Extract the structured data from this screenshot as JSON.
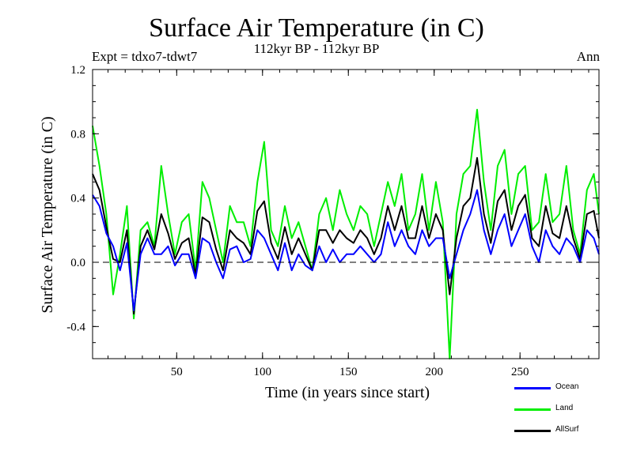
{
  "chart_data": {
    "type": "line",
    "title": "Surface Air Temperature (in C)",
    "subtitle": "112kyr BP - 112kyr BP",
    "expt_label": "Expt = tdxo7-tdwt7",
    "season_label": "Ann",
    "xlabel": "Time (in years since start)",
    "ylabel": "Surface Air Temperature (in C)",
    "xlim": [
      1,
      296
    ],
    "ylim": [
      -0.6,
      1.2
    ],
    "x_ticks": [
      50,
      100,
      150,
      200,
      250
    ],
    "y_ticks": [
      -0.4,
      0.0,
      0.4,
      0.8,
      1.2
    ],
    "y_tick_labels": [
      "-0.4",
      "0.0",
      "0.4",
      "0.8",
      "1.2"
    ],
    "zero_line": "dashed",
    "grid": false,
    "legend_position": "bottom-right, below plot",
    "series": [
      {
        "name": "Ocean",
        "color": "#0000ff",
        "x": [
          1,
          5,
          9,
          13,
          17,
          21,
          25,
          29,
          33,
          37,
          41,
          45,
          49,
          53,
          57,
          61,
          65,
          69,
          73,
          77,
          81,
          85,
          89,
          93,
          97,
          101,
          105,
          109,
          113,
          117,
          121,
          125,
          129,
          133,
          137,
          141,
          145,
          149,
          153,
          157,
          161,
          165,
          169,
          173,
          177,
          181,
          185,
          189,
          193,
          197,
          201,
          205,
          209,
          213,
          217,
          221,
          225,
          229,
          233,
          237,
          241,
          245,
          249,
          253,
          257,
          261,
          265,
          269,
          273,
          277,
          281,
          285,
          289,
          293,
          296
        ],
        "values": [
          0.42,
          0.35,
          0.18,
          0.1,
          -0.05,
          0.12,
          -0.3,
          0.05,
          0.15,
          0.05,
          0.05,
          0.1,
          -0.02,
          0.05,
          0.05,
          -0.1,
          0.15,
          0.12,
          0.0,
          -0.1,
          0.08,
          0.1,
          0.0,
          0.02,
          0.2,
          0.15,
          0.05,
          -0.05,
          0.12,
          -0.05,
          0.05,
          -0.02,
          -0.05,
          0.1,
          0.0,
          0.08,
          0.0,
          0.05,
          0.05,
          0.1,
          0.05,
          0.0,
          0.05,
          0.25,
          0.1,
          0.2,
          0.1,
          0.05,
          0.2,
          0.1,
          0.15,
          0.15,
          -0.1,
          0.05,
          0.2,
          0.3,
          0.45,
          0.2,
          0.05,
          0.2,
          0.3,
          0.1,
          0.2,
          0.3,
          0.1,
          0.0,
          0.2,
          0.1,
          0.05,
          0.15,
          0.1,
          0.0,
          0.2,
          0.15,
          0.05
        ]
      },
      {
        "name": "Land",
        "color": "#00ee00",
        "x": [
          1,
          5,
          9,
          13,
          17,
          21,
          25,
          29,
          33,
          37,
          41,
          45,
          49,
          53,
          57,
          61,
          65,
          69,
          73,
          77,
          81,
          85,
          89,
          93,
          97,
          101,
          105,
          109,
          113,
          117,
          121,
          125,
          129,
          133,
          137,
          141,
          145,
          149,
          153,
          157,
          161,
          165,
          169,
          173,
          177,
          181,
          185,
          189,
          193,
          197,
          201,
          205,
          209,
          213,
          217,
          221,
          225,
          229,
          233,
          237,
          241,
          245,
          249,
          253,
          257,
          261,
          265,
          269,
          273,
          277,
          281,
          285,
          289,
          293,
          296
        ],
        "values": [
          0.85,
          0.6,
          0.3,
          -0.2,
          0.05,
          0.35,
          -0.35,
          0.2,
          0.25,
          0.1,
          0.6,
          0.3,
          0.05,
          0.25,
          0.3,
          -0.05,
          0.5,
          0.4,
          0.2,
          0.0,
          0.35,
          0.25,
          0.25,
          0.1,
          0.5,
          0.75,
          0.2,
          0.1,
          0.35,
          0.15,
          0.25,
          0.1,
          -0.05,
          0.3,
          0.4,
          0.2,
          0.45,
          0.3,
          0.2,
          0.35,
          0.3,
          0.1,
          0.3,
          0.5,
          0.35,
          0.55,
          0.2,
          0.3,
          0.55,
          0.2,
          0.5,
          0.25,
          -0.6,
          0.3,
          0.55,
          0.6,
          0.95,
          0.5,
          0.2,
          0.6,
          0.7,
          0.3,
          0.55,
          0.6,
          0.2,
          0.25,
          0.55,
          0.25,
          0.3,
          0.6,
          0.2,
          0.05,
          0.45,
          0.55,
          0.3
        ]
      },
      {
        "name": "AllSurf",
        "color": "#000000",
        "x": [
          1,
          5,
          9,
          13,
          17,
          21,
          25,
          29,
          33,
          37,
          41,
          45,
          49,
          53,
          57,
          61,
          65,
          69,
          73,
          77,
          81,
          85,
          89,
          93,
          97,
          101,
          105,
          109,
          113,
          117,
          121,
          125,
          129,
          133,
          137,
          141,
          145,
          149,
          153,
          157,
          161,
          165,
          169,
          173,
          177,
          181,
          185,
          189,
          193,
          197,
          201,
          205,
          209,
          213,
          217,
          221,
          225,
          229,
          233,
          237,
          241,
          245,
          249,
          253,
          257,
          261,
          265,
          269,
          273,
          277,
          281,
          285,
          289,
          293,
          296
        ],
        "values": [
          0.55,
          0.45,
          0.22,
          0.02,
          0.0,
          0.2,
          -0.32,
          0.1,
          0.2,
          0.08,
          0.3,
          0.18,
          0.02,
          0.12,
          0.15,
          -0.08,
          0.28,
          0.25,
          0.08,
          -0.05,
          0.2,
          0.15,
          0.12,
          0.05,
          0.32,
          0.38,
          0.12,
          0.02,
          0.22,
          0.05,
          0.15,
          0.05,
          -0.05,
          0.2,
          0.2,
          0.12,
          0.2,
          0.15,
          0.12,
          0.2,
          0.15,
          0.05,
          0.15,
          0.35,
          0.2,
          0.35,
          0.15,
          0.15,
          0.35,
          0.15,
          0.3,
          0.2,
          -0.2,
          0.15,
          0.35,
          0.4,
          0.65,
          0.3,
          0.12,
          0.38,
          0.45,
          0.2,
          0.35,
          0.42,
          0.15,
          0.1,
          0.35,
          0.18,
          0.15,
          0.35,
          0.15,
          0.02,
          0.3,
          0.32,
          0.15
        ]
      }
    ]
  }
}
